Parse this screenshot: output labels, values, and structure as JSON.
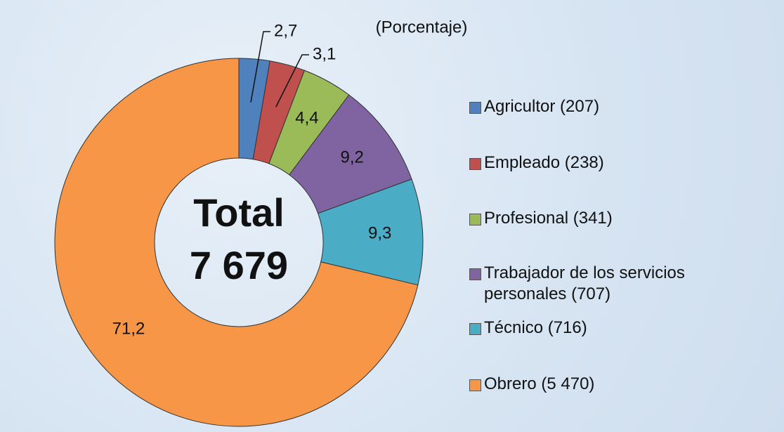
{
  "chart_data": {
    "type": "donut",
    "subtitle": "(Porcentaje)",
    "center_lines": [
      "Total",
      "7 679"
    ],
    "categories": [
      "Agricultor (207)",
      "Empleado (238)",
      "Profesional (341)",
      "Trabajador de los servicios personales (707)",
      "Técnico (716)",
      "Obrero (5 470)"
    ],
    "values": [
      2.7,
      3.1,
      4.4,
      9.2,
      9.3,
      71.2
    ],
    "value_labels": [
      "2,7",
      "3,1",
      "4,4",
      "9,2",
      "9,3",
      "71,2"
    ],
    "colors": [
      "#4f81bd",
      "#c0504d",
      "#9bbb59",
      "#8064a2",
      "#4bacc6",
      "#f79646"
    ],
    "legend": "right"
  }
}
